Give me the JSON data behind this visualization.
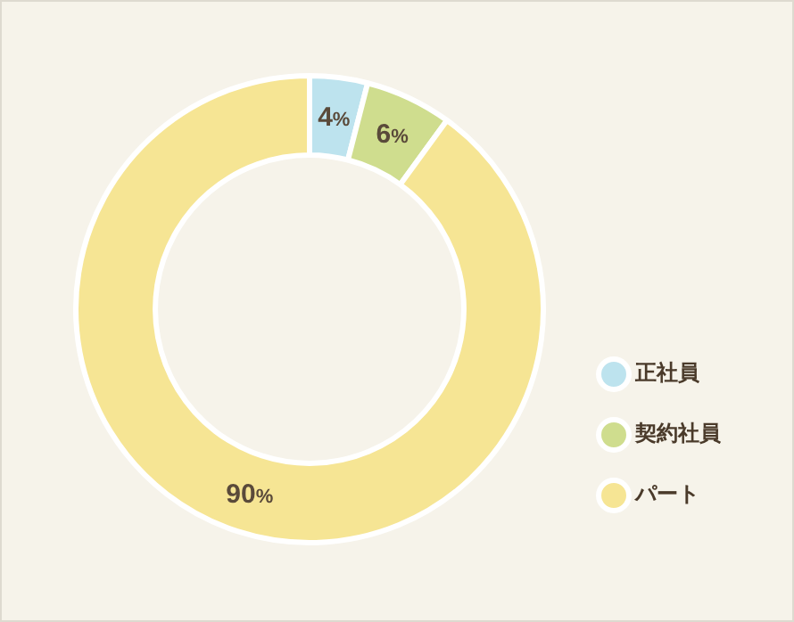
{
  "chart_data": {
    "type": "donut",
    "categories": [
      "正社員",
      "契約社員",
      "パート"
    ],
    "values": [
      4,
      6,
      90
    ],
    "colors": [
      "#bde3ee",
      "#cfdd8e",
      "#f6e594"
    ],
    "value_labels": [
      "4%",
      "6%",
      "90%"
    ],
    "legend": "bottom right"
  }
}
